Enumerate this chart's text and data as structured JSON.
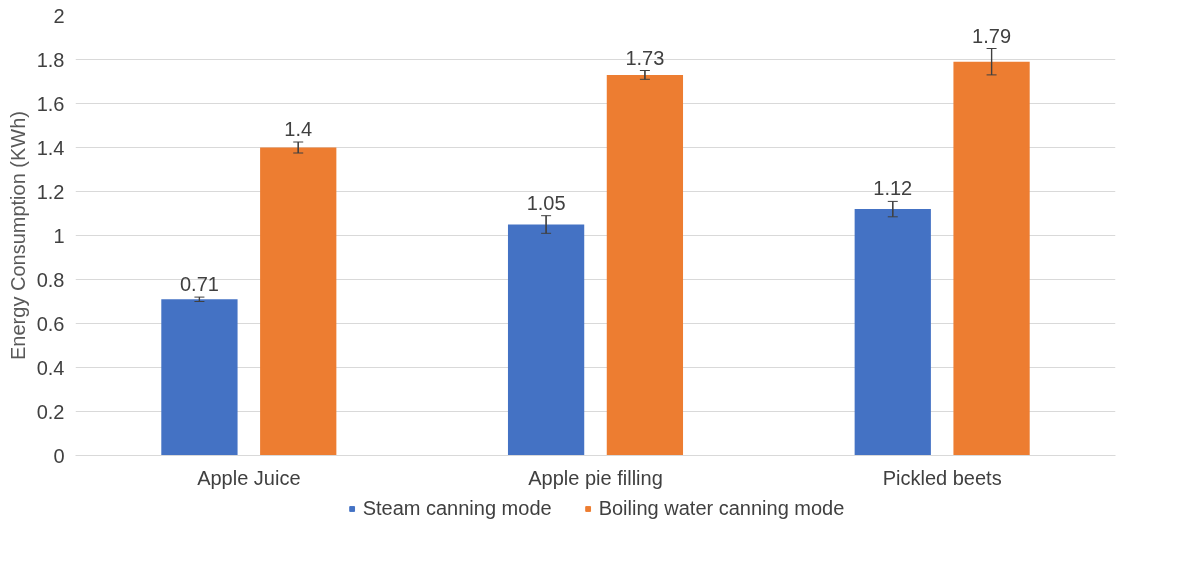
{
  "chart_data": {
    "type": "bar",
    "ylabel": "Energy Consumption (KWh)",
    "categories": [
      "Apple Juice",
      "Apple pie filling",
      "Pickled beets"
    ],
    "series": [
      {
        "name": "Steam canning mode",
        "color": "#4472c4",
        "values": [
          0.71,
          1.05,
          1.12
        ],
        "errors": [
          0.01,
          0.04,
          0.035
        ]
      },
      {
        "name": "Boiling water canning mode",
        "color": "#ed7d31",
        "values": [
          1.4,
          1.73,
          1.79
        ],
        "errors": [
          0.025,
          0.02,
          0.06
        ]
      }
    ],
    "ylim": [
      0,
      2
    ],
    "yticks": [
      0,
      0.2,
      0.4,
      0.6,
      0.8,
      1,
      1.2,
      1.4,
      1.6,
      1.8,
      2
    ],
    "grid": "y",
    "legend": "bottom",
    "data_labels": true
  }
}
